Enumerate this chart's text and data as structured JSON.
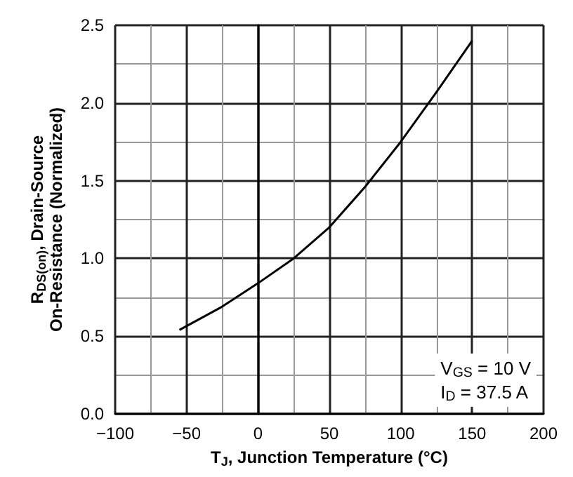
{
  "chart_data": {
    "type": "line",
    "xlabel": "T$_{J}$, Junction Temperature (°C)",
    "ylabel": "R$_{DS(on)}$, Drain-Source\nOn-Resistance (Normalized)",
    "annotations": [
      "V$_{GS}$ = 10 V",
      "I$_{D}$ = 37.5 A"
    ],
    "x": [
      -55,
      -25,
      0,
      25,
      50,
      75,
      100,
      125,
      150
    ],
    "series": [
      {
        "color": "#000000",
        "values": [
          0.54,
          0.69,
          0.84,
          1.0,
          1.2,
          1.46,
          1.75,
          2.07,
          2.4
        ]
      }
    ],
    "xlim": [
      -100,
      200
    ],
    "ylim": [
      0,
      2.5
    ],
    "xticks": [
      {
        "value": -100,
        "label": "−100"
      },
      {
        "value": -50,
        "label": "−50"
      },
      0,
      50,
      100,
      150,
      200
    ],
    "yticks": [
      {
        "value": 0,
        "label": "0.0"
      },
      0.5,
      {
        "value": 1,
        "label": "1.0"
      },
      1.5,
      {
        "value": 2,
        "label": "2.0"
      },
      2.5
    ],
    "grid": true,
    "marker": "none",
    "line_style": "solid"
  }
}
